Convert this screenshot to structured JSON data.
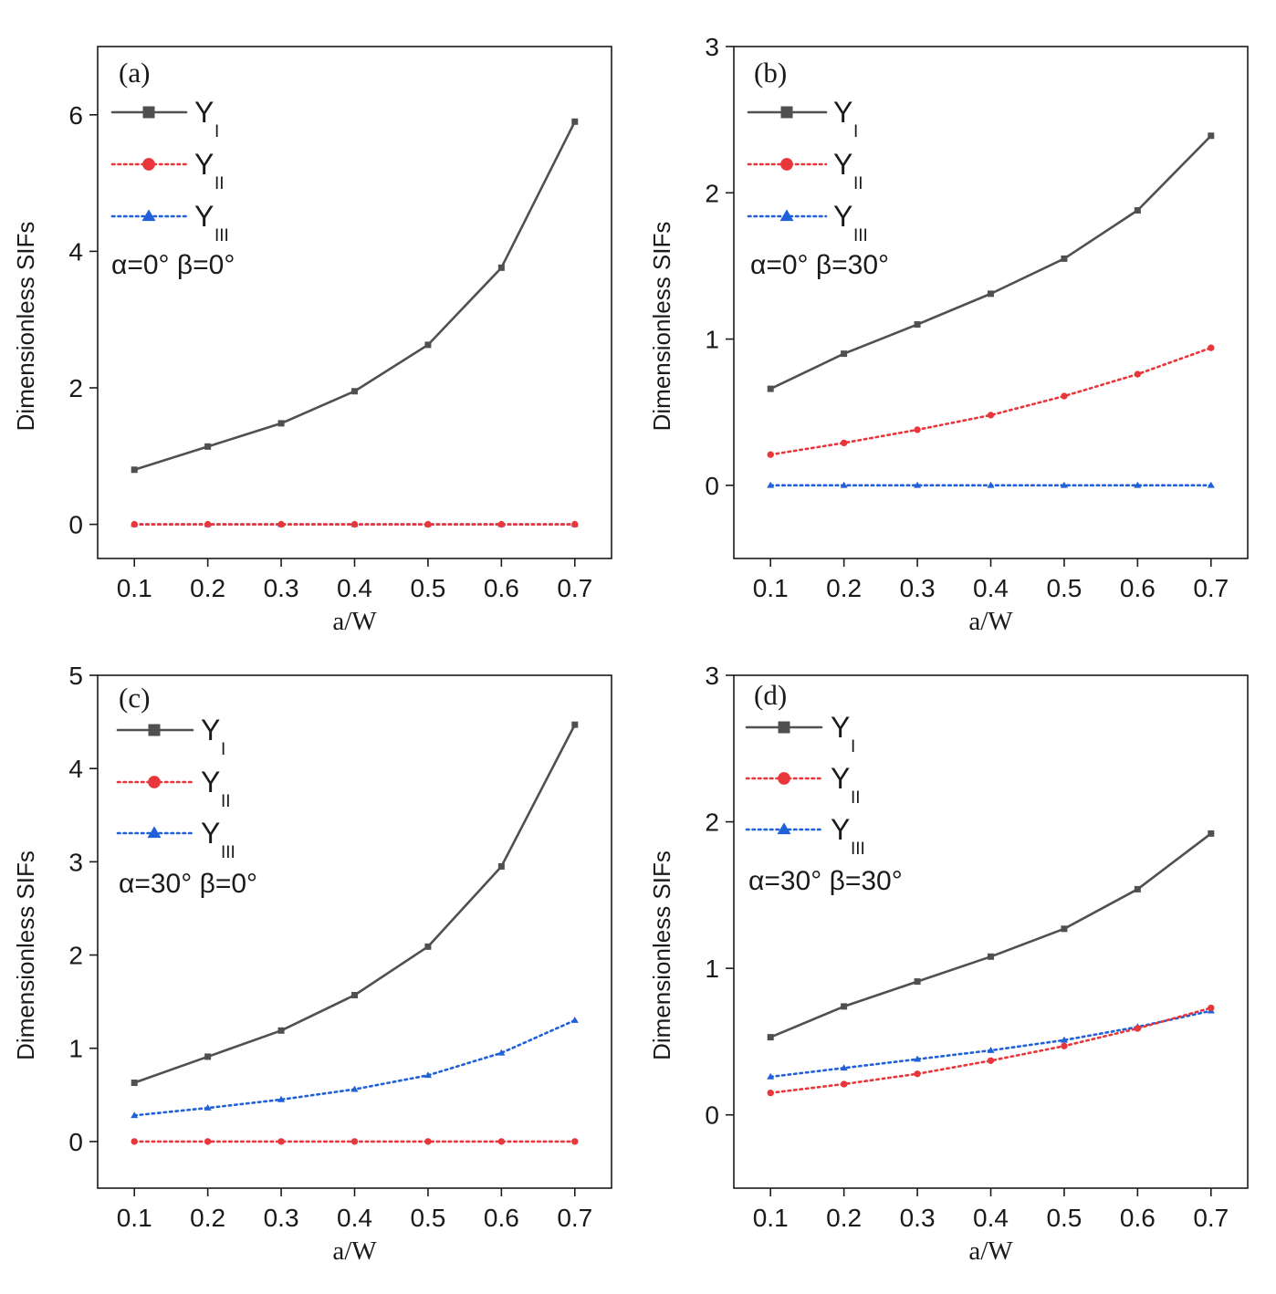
{
  "chart_data": [
    {
      "panel": "(a)",
      "type": "line",
      "xlabel": "a/W",
      "ylabel": "Dimensionless SIFs",
      "annotation": "α=0°   β=0°",
      "x": [
        0.1,
        0.2,
        0.3,
        0.4,
        0.5,
        0.6,
        0.7
      ],
      "xticks": [
        "0.1",
        "0.2",
        "0.3",
        "0.4",
        "0.5",
        "0.6",
        "0.7"
      ],
      "xlim": [
        0.05,
        0.75
      ],
      "ylim": [
        -0.5,
        7
      ],
      "yticks": [
        0,
        2,
        4,
        6
      ],
      "ytick_labels": [
        "0",
        "2",
        "4",
        "6"
      ],
      "legend_position": "top-left",
      "series": [
        {
          "name": "Y",
          "sub": "I",
          "style": "solid",
          "marker": "square",
          "color": "#505050",
          "values": [
            0.8,
            1.14,
            1.48,
            1.95,
            2.63,
            3.76,
            5.9
          ]
        },
        {
          "name": "Y",
          "sub": "II",
          "style": "dotted",
          "marker": "circle",
          "color": "#e8363a",
          "values": [
            0,
            0,
            0,
            0,
            0,
            0,
            0
          ]
        },
        {
          "name": "Y",
          "sub": "III",
          "style": "dotted",
          "marker": "triangle",
          "color": "#2060d8",
          "values": [
            0,
            0,
            0,
            0,
            0,
            0,
            0
          ]
        }
      ]
    },
    {
      "panel": "(b)",
      "type": "line",
      "xlabel": "a/W",
      "ylabel": "Dimensionless SIFs",
      "annotation": "α=0°   β=30°",
      "x": [
        0.1,
        0.2,
        0.3,
        0.4,
        0.5,
        0.6,
        0.7
      ],
      "xticks": [
        "0.1",
        "0.2",
        "0.3",
        "0.4",
        "0.5",
        "0.6",
        "0.7"
      ],
      "xlim": [
        0.05,
        0.75
      ],
      "ylim": [
        -0.5,
        3
      ],
      "yticks": [
        0,
        1,
        2,
        3
      ],
      "ytick_labels": [
        "0",
        "1",
        "2",
        "3"
      ],
      "legend_position": "top-left",
      "series": [
        {
          "name": "Y",
          "sub": "I",
          "style": "solid",
          "marker": "square",
          "color": "#505050",
          "values": [
            0.66,
            0.9,
            1.1,
            1.31,
            1.55,
            1.88,
            2.39
          ]
        },
        {
          "name": "Y",
          "sub": "II",
          "style": "dotted",
          "marker": "circle",
          "color": "#e8363a",
          "values": [
            0.21,
            0.29,
            0.38,
            0.48,
            0.61,
            0.76,
            0.94
          ]
        },
        {
          "name": "Y",
          "sub": "III",
          "style": "dotted",
          "marker": "triangle",
          "color": "#2060d8",
          "values": [
            0,
            0,
            0,
            0,
            0,
            0,
            0
          ]
        }
      ]
    },
    {
      "panel": "(c)",
      "type": "line",
      "xlabel": "a/W",
      "ylabel": "Dimensionless SIFs",
      "annotation": "α=30°   β=0°",
      "x": [
        0.1,
        0.2,
        0.3,
        0.4,
        0.5,
        0.6,
        0.7
      ],
      "xticks": [
        "0.1",
        "0.2",
        "0.3",
        "0.4",
        "0.5",
        "0.6",
        "0.7"
      ],
      "xlim": [
        0.05,
        0.75
      ],
      "ylim": [
        -0.5,
        5
      ],
      "yticks": [
        0,
        1,
        2,
        3,
        4,
        5
      ],
      "ytick_labels": [
        "0",
        "1",
        "2",
        "3",
        "4",
        "5"
      ],
      "legend_position": "top-left",
      "series": [
        {
          "name": "Y",
          "sub": "I",
          "style": "solid",
          "marker": "square",
          "color": "#505050",
          "values": [
            0.63,
            0.91,
            1.19,
            1.57,
            2.09,
            2.95,
            4.47
          ]
        },
        {
          "name": "Y",
          "sub": "II",
          "style": "dotted",
          "marker": "circle",
          "color": "#e8363a",
          "values": [
            0,
            0,
            0,
            0,
            0,
            0,
            0
          ]
        },
        {
          "name": "Y",
          "sub": "III",
          "style": "dotted",
          "marker": "triangle",
          "color": "#2060d8",
          "values": [
            0.28,
            0.36,
            0.45,
            0.56,
            0.71,
            0.95,
            1.3
          ]
        }
      ]
    },
    {
      "panel": "(d)",
      "type": "line",
      "xlabel": "a/W",
      "ylabel": "Dimensionless SIFs",
      "annotation": "α=30°   β=30°",
      "x": [
        0.1,
        0.2,
        0.3,
        0.4,
        0.5,
        0.6,
        0.7
      ],
      "xticks": [
        "0.1",
        "0.2",
        "0.3",
        "0.4",
        "0.5",
        "0.6",
        "0.7"
      ],
      "xlim": [
        0.05,
        0.75
      ],
      "ylim": [
        -0.5,
        3
      ],
      "yticks": [
        0,
        1,
        2,
        3
      ],
      "ytick_labels": [
        "0",
        "1",
        "2",
        "3"
      ],
      "legend_position": "top-left",
      "series": [
        {
          "name": "Y",
          "sub": "I",
          "style": "solid",
          "marker": "square",
          "color": "#505050",
          "values": [
            0.53,
            0.74,
            0.91,
            1.08,
            1.27,
            1.54,
            1.92
          ]
        },
        {
          "name": "Y",
          "sub": "II",
          "style": "dotted",
          "marker": "circle",
          "color": "#e8363a",
          "values": [
            0.15,
            0.21,
            0.28,
            0.37,
            0.47,
            0.59,
            0.73
          ]
        },
        {
          "name": "Y",
          "sub": "III",
          "style": "dotted",
          "marker": "triangle",
          "color": "#2060d8",
          "values": [
            0.26,
            0.32,
            0.38,
            0.44,
            0.51,
            0.6,
            0.71
          ]
        }
      ]
    }
  ]
}
